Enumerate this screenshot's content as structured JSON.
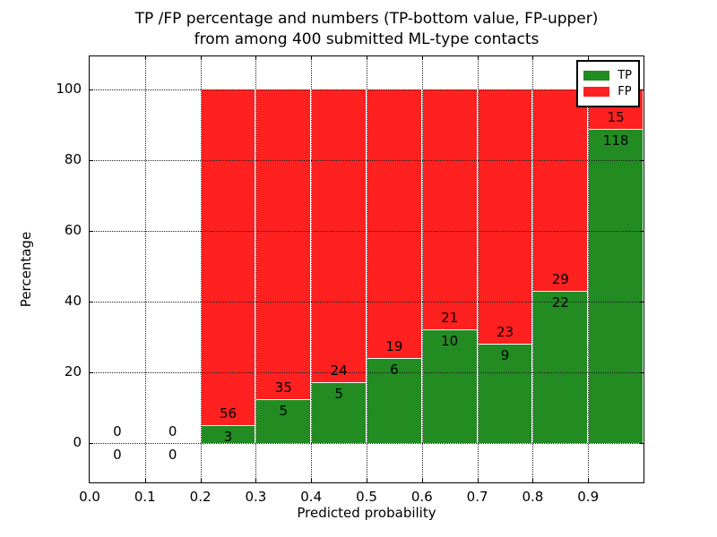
{
  "figure": {
    "title_line1": "TP /FP percentage and numbers (TP-bottom value, FP-upper)",
    "title_line2": "from among 400 submitted ML-type contacts"
  },
  "chart_data": {
    "type": "bar",
    "stacked": true,
    "normalized_to_percent": true,
    "title": "TP /FP percentage and numbers (TP-bottom value, FP-upper)\nfrom among 400 submitted ML-type contacts",
    "xlabel": "Predicted probability",
    "ylabel": "Percentage",
    "xlim": [
      0.0,
      1.0
    ],
    "ylim": [
      -11.1,
      109.3
    ],
    "xticks": [
      "0.0",
      "0.1",
      "0.2",
      "0.3",
      "0.4",
      "0.5",
      "0.6",
      "0.7",
      "0.8",
      "0.9"
    ],
    "yticks": [
      0,
      20,
      40,
      60,
      80,
      100
    ],
    "grid": "dotted, both axes",
    "legend": {
      "position": "upper-right",
      "entries": [
        {
          "label": "TP",
          "color": "#228B22"
        },
        {
          "label": "FP",
          "color": "#FF2020"
        }
      ]
    },
    "bar_label_note": "labels are raw counts: TP below segment boundary, FP above",
    "bins": [
      {
        "x0": 0.0,
        "x1": 0.1,
        "tp": 0,
        "fp": 0
      },
      {
        "x0": 0.1,
        "x1": 0.2,
        "tp": 0,
        "fp": 0
      },
      {
        "x0": 0.2,
        "x1": 0.3,
        "tp": 3,
        "fp": 56
      },
      {
        "x0": 0.3,
        "x1": 0.4,
        "tp": 5,
        "fp": 35
      },
      {
        "x0": 0.4,
        "x1": 0.5,
        "tp": 5,
        "fp": 24
      },
      {
        "x0": 0.5,
        "x1": 0.6,
        "tp": 6,
        "fp": 19
      },
      {
        "x0": 0.6,
        "x1": 0.7,
        "tp": 10,
        "fp": 21
      },
      {
        "x0": 0.7,
        "x1": 0.8,
        "tp": 9,
        "fp": 23
      },
      {
        "x0": 0.8,
        "x1": 0.9,
        "tp": 22,
        "fp": 29
      },
      {
        "x0": 0.9,
        "x1": 1.0,
        "tp": 118,
        "fp": 15
      }
    ]
  }
}
